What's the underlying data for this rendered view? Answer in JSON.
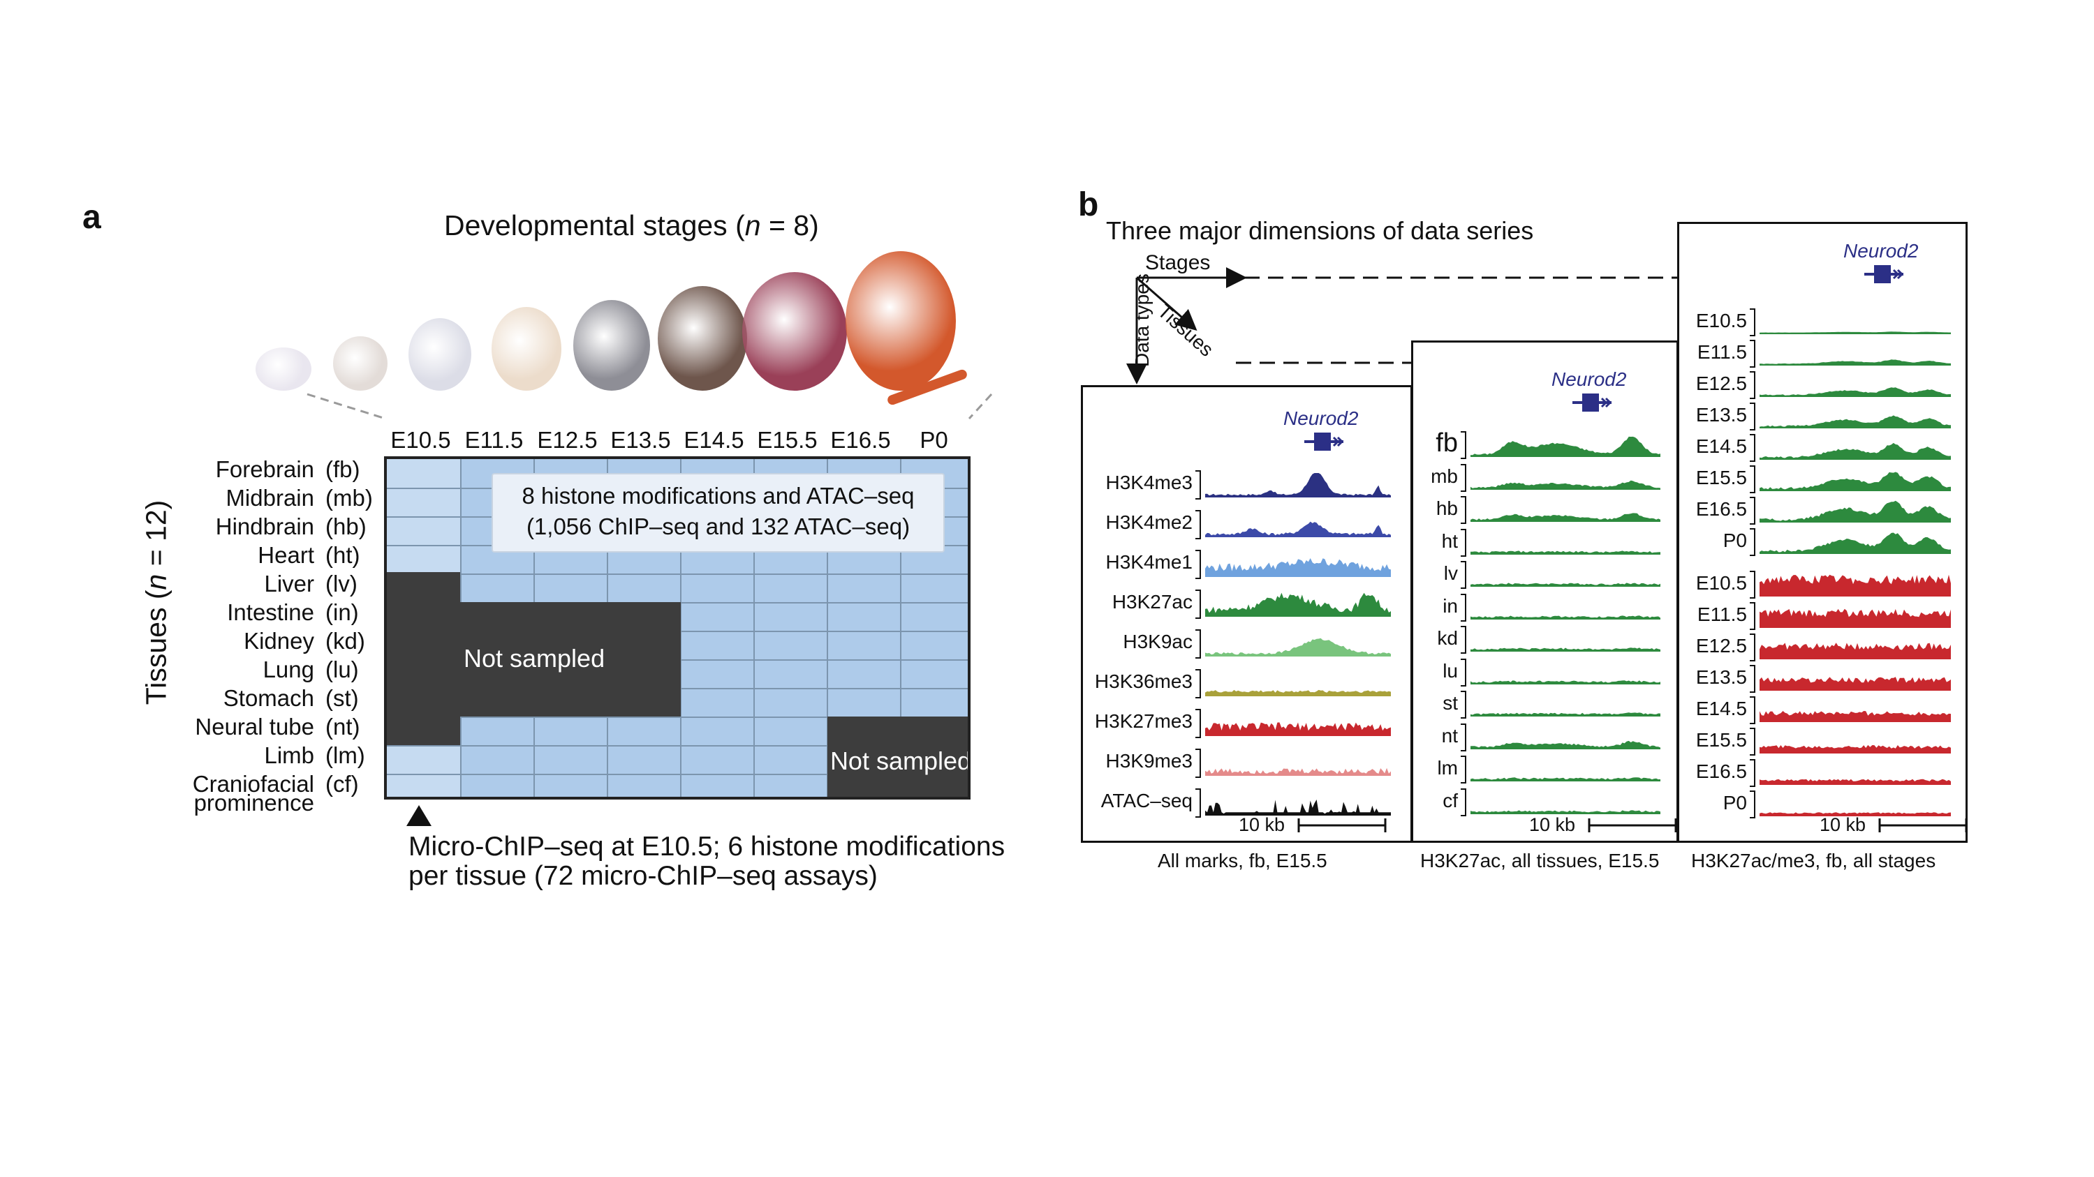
{
  "panel_a": {
    "label": "a",
    "stages_title_pre": "Developmental stages (",
    "stages_title_n": "n",
    "stages_title_post": " = 8)",
    "tissues_title_pre": "Tissues (",
    "tissues_title_n": "n",
    "tissues_title_post": " = 12)",
    "stages": [
      "E10.5",
      "E11.5",
      "E12.5",
      "E13.5",
      "E14.5",
      "E15.5",
      "E16.5",
      "P0"
    ],
    "tissues": [
      {
        "name": "Forebrain",
        "abbr": "(fb)"
      },
      {
        "name": "Midbrain",
        "abbr": "(mb)"
      },
      {
        "name": "Hindbrain",
        "abbr": "(hb)"
      },
      {
        "name": "Heart",
        "abbr": "(ht)"
      },
      {
        "name": "Liver",
        "abbr": "(lv)"
      },
      {
        "name": "Intestine",
        "abbr": "(in)"
      },
      {
        "name": "Kidney",
        "abbr": "(kd)"
      },
      {
        "name": "Lung",
        "abbr": "(lu)"
      },
      {
        "name": "Stomach",
        "abbr": "(st)"
      },
      {
        "name": "Neural tube",
        "abbr": "(nt)"
      },
      {
        "name": "Limb",
        "abbr": "(lm)"
      },
      {
        "name": "Craniofacial",
        "abbr": "(cf)"
      }
    ],
    "tissue_last_line2": "prominence",
    "callout_line1": "8 histone modifications and ATAC–seq",
    "callout_line2": "(1,056 ChIP–seq and 132 ATAC–seq)",
    "not_sampled": "Not sampled",
    "micro_line1": "Micro-ChIP–seq at E10.5; 6 histone modifications",
    "micro_line2": "per tissue (72 micro-ChIP–seq assays)",
    "embryo_colors": [
      "#e9e6ef",
      "#e3dcd8",
      "#dcdde7",
      "#ecdccb",
      "#8e8e96",
      "#6e564c",
      "#9a4058",
      "#d3582c"
    ]
  },
  "panel_b": {
    "label": "b",
    "title": "Three major dimensions of data series",
    "axis_stages": "Stages",
    "axis_tissues": "Tissues",
    "axis_data_types": "Data types",
    "gene": "Neurod2",
    "scale": "10 kb",
    "box1": {
      "caption": "All marks, fb, E15.5",
      "tracks": [
        {
          "label": "H3K4me3",
          "color": "#2b3182"
        },
        {
          "label": "H3K4me2",
          "color": "#3c4aa8"
        },
        {
          "label": "H3K4me1",
          "color": "#6fa2de"
        },
        {
          "label": "H3K27ac",
          "color": "#2d8a3e"
        },
        {
          "label": "H3K9ac",
          "color": "#79c47d"
        },
        {
          "label": "H3K36me3",
          "color": "#a9a13a"
        },
        {
          "label": "H3K27me3",
          "color": "#c8282e"
        },
        {
          "label": "H3K9me3",
          "color": "#e48a8a"
        },
        {
          "label": "ATAC–seq",
          "color": "#111111"
        }
      ]
    },
    "box2": {
      "caption": "H3K27ac, all tissues, E15.5",
      "tracks": [
        "fb",
        "mb",
        "hb",
        "ht",
        "lv",
        "in",
        "kd",
        "lu",
        "st",
        "nt",
        "lm",
        "cf"
      ]
    },
    "box3": {
      "caption": "H3K27ac/me3, fb, all stages",
      "tracks_green": [
        "E10.5",
        "E11.5",
        "E12.5",
        "E13.5",
        "E14.5",
        "E15.5",
        "E16.5",
        "P0"
      ],
      "tracks_red": [
        "E10.5",
        "E11.5",
        "E12.5",
        "E13.5",
        "E14.5",
        "E15.5",
        "E16.5",
        "P0"
      ]
    }
  }
}
